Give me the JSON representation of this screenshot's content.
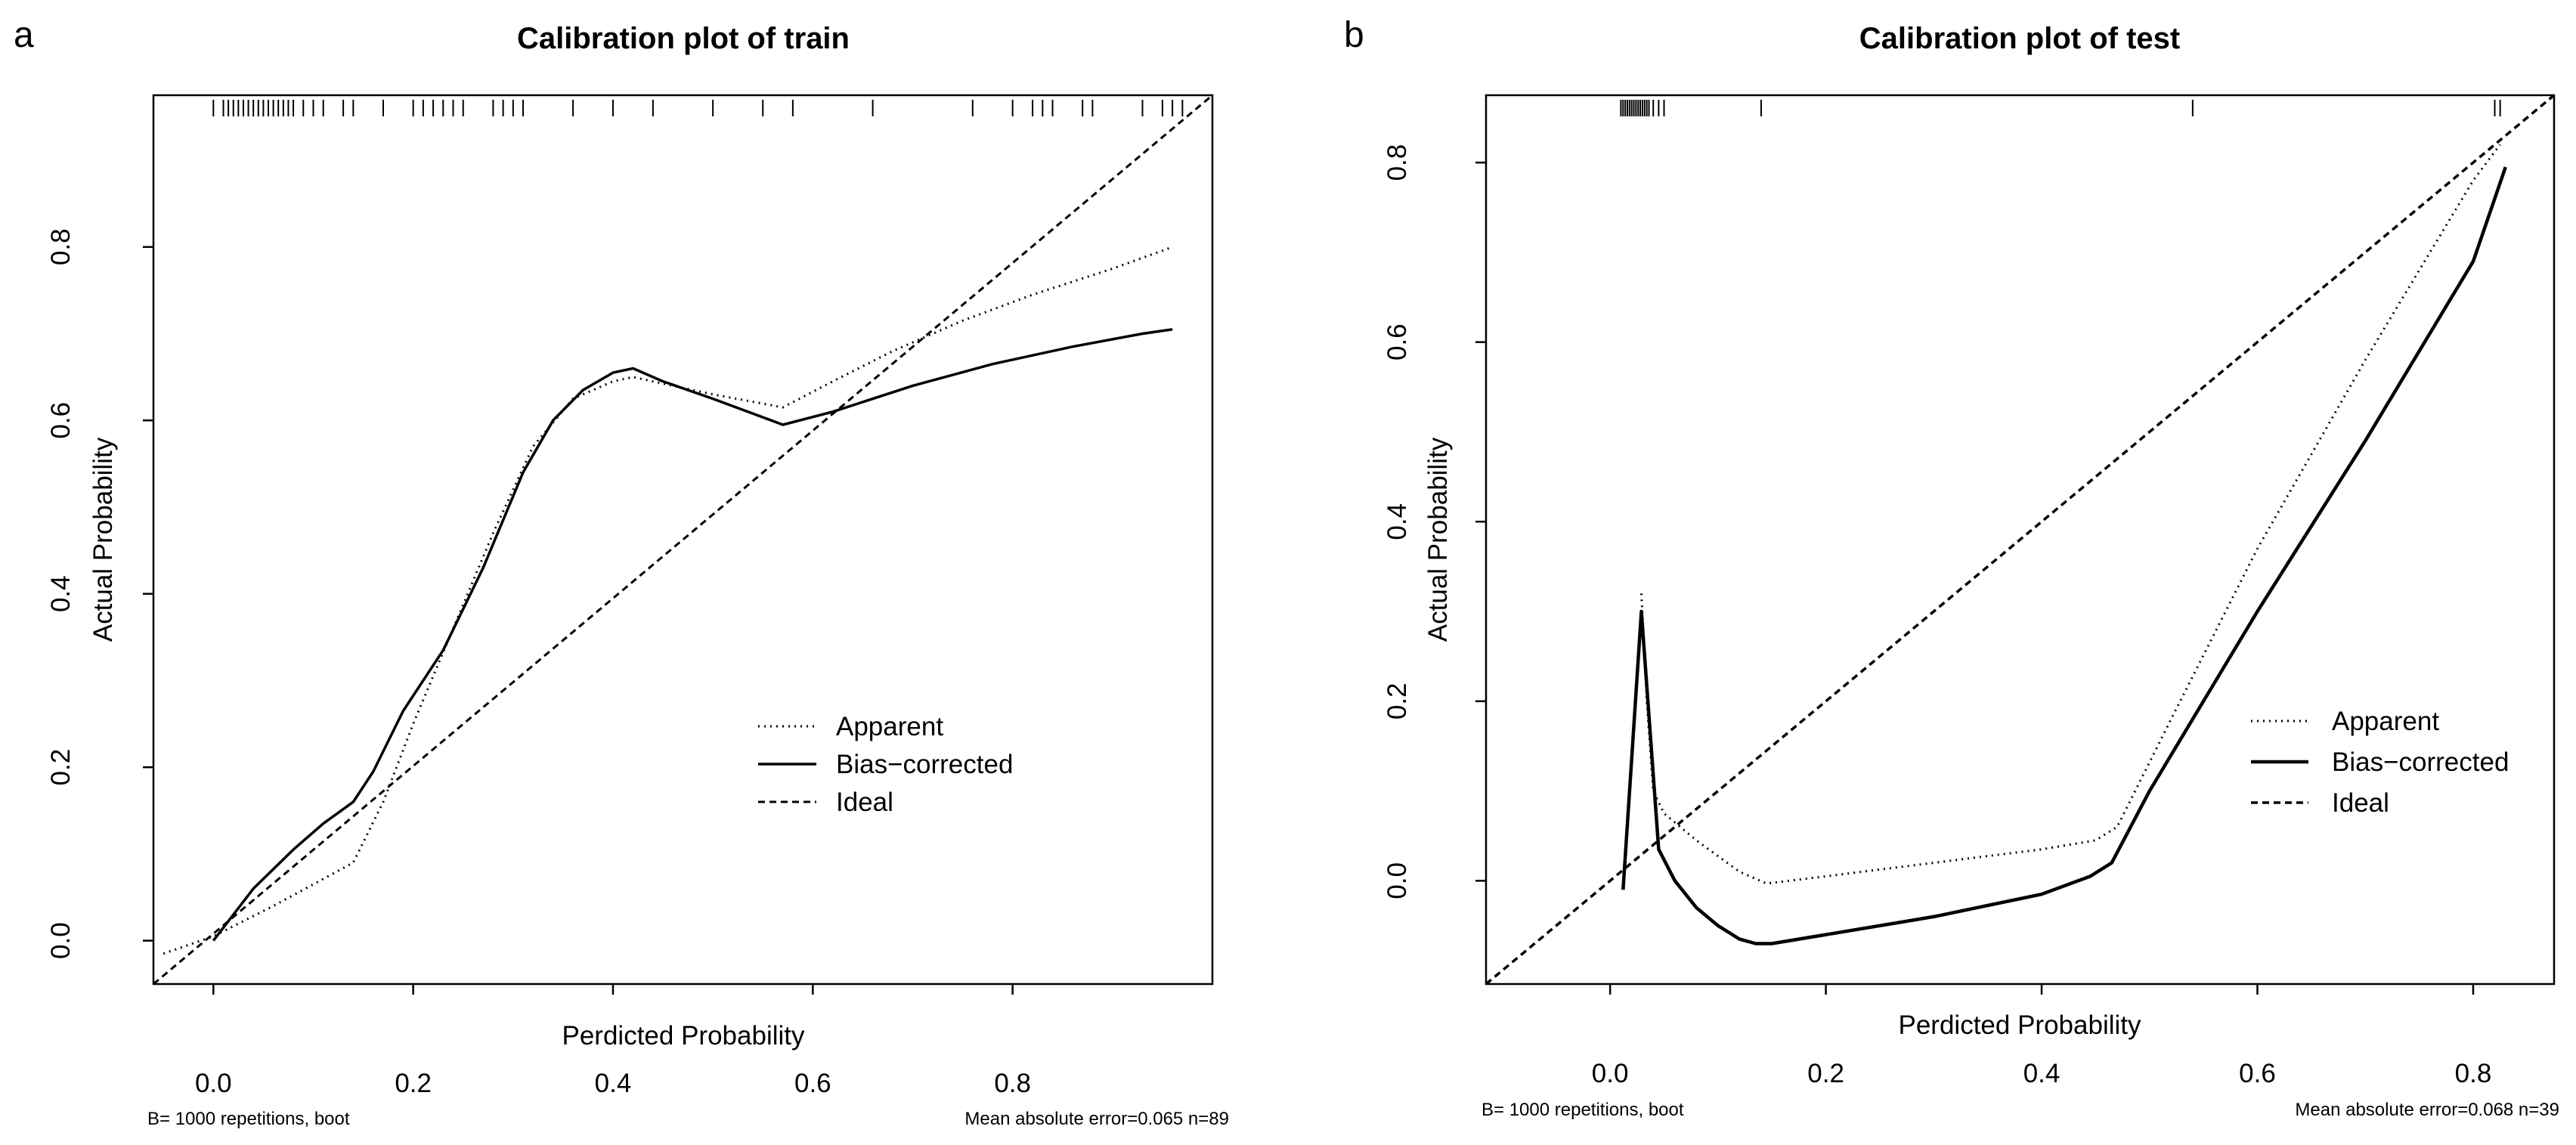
{
  "figure": {
    "panel_a_letter": "a",
    "panel_b_letter": "b"
  },
  "chart_data": [
    {
      "type": "line",
      "title": "Calibration plot of train",
      "xlabel": "Perdicted Probability",
      "ylabel": "Actual Probability",
      "xlim": [
        -0.06,
        1.0
      ],
      "ylim": [
        -0.05,
        0.975
      ],
      "xticks": [
        0.0,
        0.2,
        0.4,
        0.6,
        0.8
      ],
      "xtick_labels": [
        "0.0",
        "0.2",
        "0.4",
        "0.6",
        "0.8"
      ],
      "yticks": [
        0.0,
        0.2,
        0.4,
        0.6,
        0.8
      ],
      "ytick_labels": [
        "0.0",
        "0.2",
        "0.4",
        "0.6",
        "0.8"
      ],
      "footnote_left": "B= 1000 repetitions, boot",
      "footnote_right": "Mean absolute error=0.065 n=89",
      "legend": {
        "position": "right",
        "entries": [
          {
            "label": "Apparent",
            "style": "dotted"
          },
          {
            "label": "Bias−corrected",
            "style": "solid"
          },
          {
            "label": "Ideal",
            "style": "dashed"
          }
        ]
      },
      "series": [
        {
          "name": "Apparent",
          "style": "dotted",
          "x": [
            -0.05,
            0.0,
            0.06,
            0.1,
            0.14,
            0.17,
            0.2,
            0.24,
            0.28,
            0.32,
            0.36,
            0.4,
            0.42,
            0.46,
            0.5,
            0.57,
            0.62,
            0.68,
            0.75,
            0.82,
            0.9,
            0.96
          ],
          "y": [
            -0.015,
            0.005,
            0.04,
            0.065,
            0.09,
            0.16,
            0.25,
            0.36,
            0.47,
            0.57,
            0.625,
            0.645,
            0.65,
            0.64,
            0.63,
            0.615,
            0.645,
            0.68,
            0.715,
            0.745,
            0.775,
            0.8
          ]
        },
        {
          "name": "Bias-corrected",
          "style": "solid",
          "x": [
            0.0,
            0.04,
            0.08,
            0.11,
            0.14,
            0.16,
            0.19,
            0.23,
            0.27,
            0.31,
            0.34,
            0.37,
            0.4,
            0.42,
            0.45,
            0.5,
            0.57,
            0.62,
            0.7,
            0.78,
            0.86,
            0.93,
            0.96
          ],
          "y": [
            0.0,
            0.06,
            0.105,
            0.135,
            0.16,
            0.195,
            0.265,
            0.335,
            0.43,
            0.54,
            0.6,
            0.635,
            0.655,
            0.66,
            0.645,
            0.625,
            0.595,
            0.61,
            0.64,
            0.665,
            0.685,
            0.7,
            0.705
          ]
        },
        {
          "name": "Ideal",
          "style": "dashed",
          "x": [
            -0.06,
            1.0
          ],
          "y": [
            -0.05,
            0.975
          ]
        }
      ],
      "rug": [
        0.0,
        0.01,
        0.015,
        0.02,
        0.025,
        0.03,
        0.035,
        0.04,
        0.045,
        0.05,
        0.055,
        0.06,
        0.065,
        0.07,
        0.075,
        0.08,
        0.09,
        0.1,
        0.11,
        0.13,
        0.14,
        0.17,
        0.2,
        0.21,
        0.22,
        0.23,
        0.24,
        0.25,
        0.28,
        0.29,
        0.3,
        0.31,
        0.36,
        0.4,
        0.44,
        0.5,
        0.55,
        0.58,
        0.66,
        0.76,
        0.8,
        0.82,
        0.83,
        0.84,
        0.87,
        0.88,
        0.93,
        0.95,
        0.96,
        0.97
      ]
    },
    {
      "type": "line",
      "title": "Calibration plot of test",
      "xlabel": "Perdicted Probability",
      "ylabel": "Actual Probability",
      "xlim": [
        -0.115,
        0.875
      ],
      "ylim": [
        -0.115,
        0.875
      ],
      "xticks": [
        0.0,
        0.2,
        0.4,
        0.6,
        0.8
      ],
      "xtick_labels": [
        "0.0",
        "0.2",
        "0.4",
        "0.6",
        "0.8"
      ],
      "yticks": [
        0.0,
        0.2,
        0.4,
        0.6,
        0.8
      ],
      "ytick_labels": [
        "0.0",
        "0.2",
        "0.4",
        "0.6",
        "0.8"
      ],
      "footnote_left": "B= 1000 repetitions, boot",
      "footnote_right": "Mean absolute error=0.068 n=39",
      "legend": {
        "position": "right",
        "entries": [
          {
            "label": "Apparent",
            "style": "dotted"
          },
          {
            "label": "Bias−corrected",
            "style": "solid"
          },
          {
            "label": "Ideal",
            "style": "dashed"
          }
        ]
      },
      "series": [
        {
          "name": "Apparent",
          "style": "dotted",
          "x": [
            0.029,
            0.034,
            0.04,
            0.05,
            0.08,
            0.12,
            0.145,
            0.2,
            0.3,
            0.4,
            0.45,
            0.47,
            0.52,
            0.6,
            0.7,
            0.8,
            0.825
          ],
          "y": [
            0.32,
            0.2,
            0.1,
            0.075,
            0.045,
            0.01,
            -0.003,
            0.005,
            0.02,
            0.035,
            0.045,
            0.06,
            0.18,
            0.37,
            0.58,
            0.78,
            0.82
          ]
        },
        {
          "name": "Bias-corrected",
          "style": "solid",
          "x": [
            0.012,
            0.029,
            0.045,
            0.06,
            0.08,
            0.1,
            0.12,
            0.135,
            0.15,
            0.2,
            0.3,
            0.4,
            0.445,
            0.465,
            0.5,
            0.55,
            0.6,
            0.7,
            0.8,
            0.83
          ],
          "y": [
            -0.01,
            0.3,
            0.035,
            0.0,
            -0.03,
            -0.05,
            -0.065,
            -0.07,
            -0.07,
            -0.06,
            -0.04,
            -0.015,
            0.005,
            0.02,
            0.1,
            0.2,
            0.3,
            0.49,
            0.69,
            0.795
          ]
        },
        {
          "name": "Ideal",
          "style": "dashed",
          "x": [
            -0.115,
            0.875
          ],
          "y": [
            -0.115,
            0.875
          ]
        }
      ],
      "rug": [
        0.01,
        0.012,
        0.014,
        0.016,
        0.018,
        0.02,
        0.022,
        0.024,
        0.026,
        0.028,
        0.03,
        0.032,
        0.034,
        0.036,
        0.04,
        0.045,
        0.05,
        0.14,
        0.54,
        0.82,
        0.825
      ]
    }
  ]
}
